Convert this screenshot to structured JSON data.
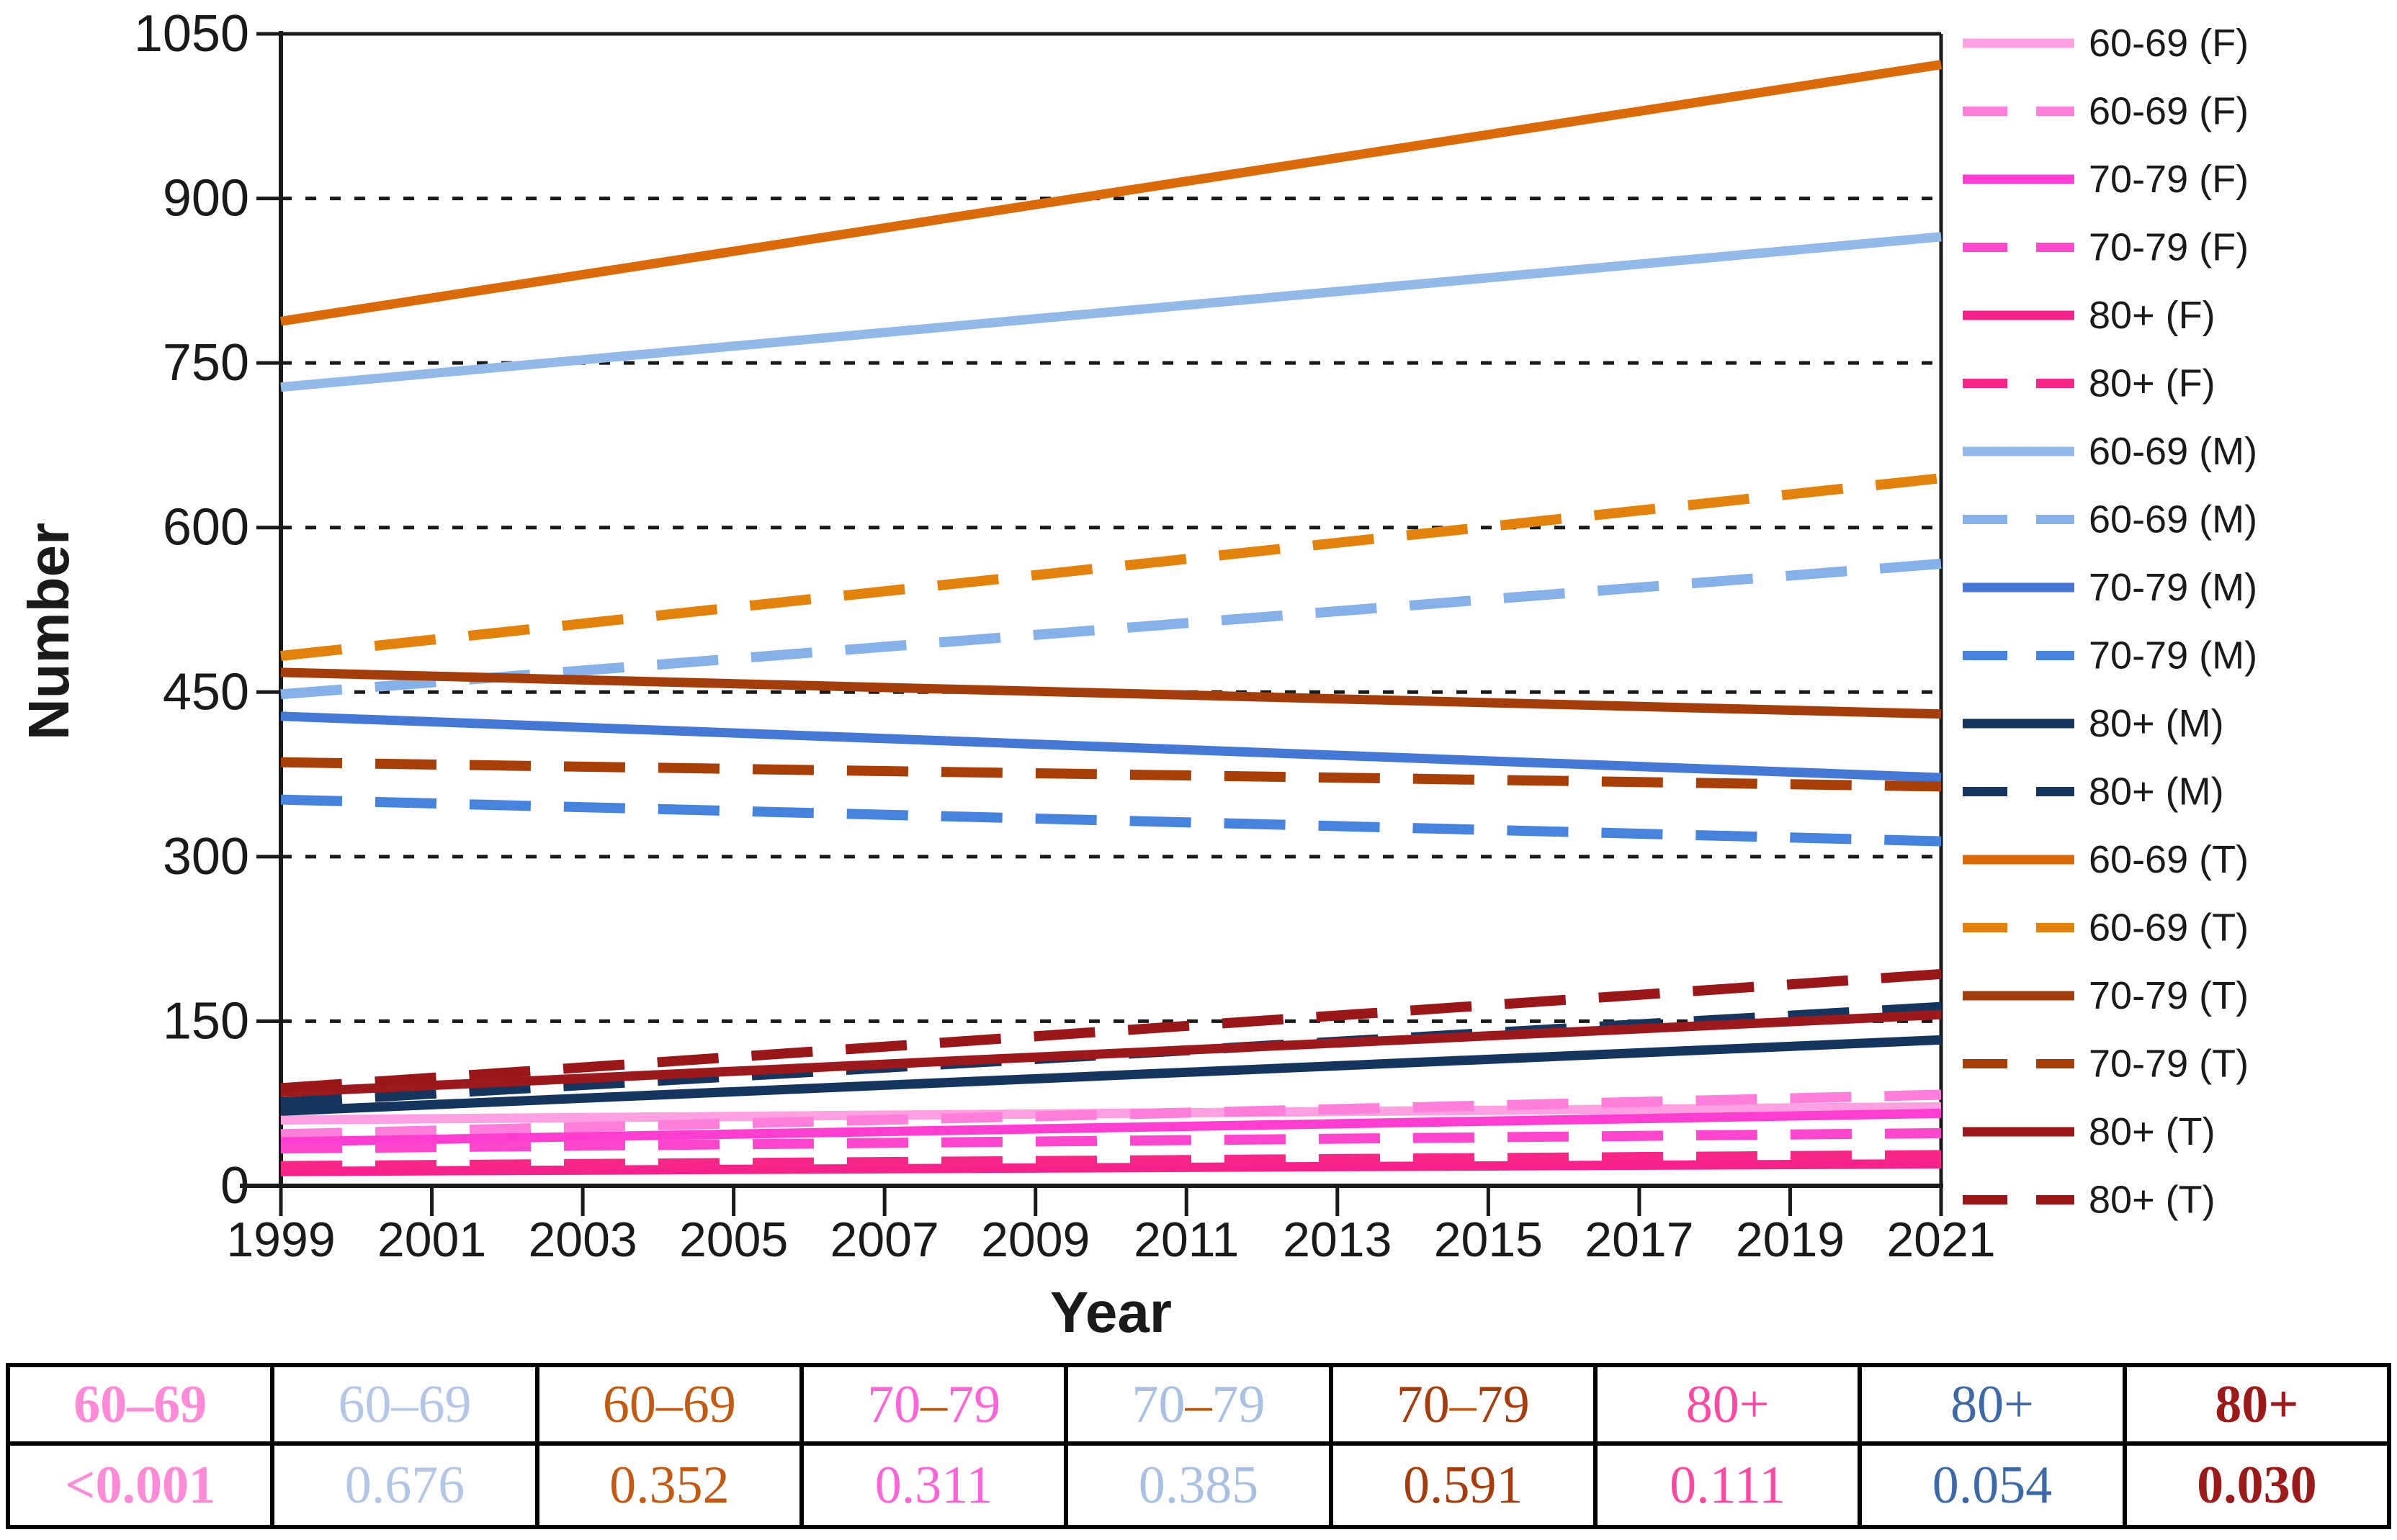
{
  "chart_data": {
    "type": "line",
    "title": "",
    "xlabel": "Year",
    "ylabel": "Number",
    "xlim": [
      1999,
      2021
    ],
    "ylim": [
      0,
      1050
    ],
    "x_tick_labels": [
      "1999",
      "2001",
      "2003",
      "2005",
      "2007",
      "2009",
      "2011",
      "2013",
      "2015",
      "2017",
      "2019",
      "2021"
    ],
    "y_ticks": [
      0,
      150,
      300,
      450,
      600,
      750,
      900,
      1050
    ],
    "grid_y_dashed": [
      150,
      300,
      450,
      600,
      750,
      900
    ],
    "legend_position": "right",
    "axis_color": "#1a1a1a",
    "series": [
      {
        "label": "60-69 (F)",
        "dash": false,
        "color": "#ffa0e2",
        "x": [
          1999,
          2021
        ],
        "values": [
          60,
          72
        ]
      },
      {
        "label": "60-69 (F)",
        "dash": true,
        "color": "#ff7edb",
        "x": [
          1999,
          2021
        ],
        "values": [
          47,
          83
        ]
      },
      {
        "label": "70-79 (F)",
        "dash": false,
        "color": "#ff3ed1",
        "x": [
          1999,
          2021
        ],
        "values": [
          40,
          66
        ]
      },
      {
        "label": "70-79 (F)",
        "dash": true,
        "color": "#ff46ce",
        "x": [
          1999,
          2021
        ],
        "values": [
          34,
          48
        ]
      },
      {
        "label": "80+ (F)",
        "dash": false,
        "color": "#f6218a",
        "x": [
          1999,
          2021
        ],
        "values": [
          13,
          20
        ]
      },
      {
        "label": "80+ (F)",
        "dash": true,
        "color": "#f62788",
        "x": [
          1999,
          2021
        ],
        "values": [
          18,
          28
        ]
      },
      {
        "label": "60-69 (M)",
        "dash": false,
        "color": "#93b9e9",
        "x": [
          1999,
          2021
        ],
        "values": [
          728,
          865
        ]
      },
      {
        "label": "60-69 (M)",
        "dash": true,
        "color": "#85b0e8",
        "x": [
          1999,
          2021
        ],
        "values": [
          448,
          567
        ]
      },
      {
        "label": "70-79 (M)",
        "dash": false,
        "color": "#4478d4",
        "x": [
          1999,
          2021
        ],
        "values": [
          428,
          372
        ]
      },
      {
        "label": "70-79 (M)",
        "dash": true,
        "color": "#4583dc",
        "x": [
          1999,
          2021
        ],
        "values": [
          352,
          314
        ]
      },
      {
        "label": "80+ (M)",
        "dash": false,
        "color": "#16355e",
        "x": [
          1999,
          2021
        ],
        "values": [
          68,
          133
        ]
      },
      {
        "label": "80+ (M)",
        "dash": true,
        "color": "#16355e",
        "x": [
          1999,
          2021
        ],
        "values": [
          76,
          163
        ]
      },
      {
        "label": "60-69 (T)",
        "dash": false,
        "color": "#db6b0a",
        "x": [
          1999,
          2021
        ],
        "values": [
          788,
          1022
        ]
      },
      {
        "label": "60-69 (T)",
        "dash": true,
        "color": "#e2820d",
        "x": [
          1999,
          2021
        ],
        "values": [
          483,
          645
        ]
      },
      {
        "label": "70-79 (T)",
        "dash": false,
        "color": "#a33d0b",
        "x": [
          1999,
          2021
        ],
        "values": [
          468,
          430
        ]
      },
      {
        "label": "70-79 (T)",
        "dash": true,
        "color": "#a83f09",
        "x": [
          1999,
          2021
        ],
        "values": [
          386,
          364
        ]
      },
      {
        "label": "80+ (T)",
        "dash": false,
        "color": "#9c1a1e",
        "x": [
          1999,
          2021
        ],
        "values": [
          85,
          156
        ]
      },
      {
        "label": "80+ (T)",
        "dash": true,
        "color": "#991719",
        "x": [
          1999,
          2021
        ],
        "values": [
          89,
          193
        ]
      }
    ]
  },
  "p_table": {
    "columns": [
      {
        "header": "60–69",
        "p_value": "<0.001",
        "color": "#ff8ad8",
        "bold": true
      },
      {
        "header": "60–69",
        "p_value": "0.676",
        "color": "#b3c6e7",
        "bold": false
      },
      {
        "header": "60–69",
        "p_value": "0.352",
        "color": "#c45a11",
        "bold": false
      },
      {
        "header": "70–79",
        "p_value": "0.311",
        "color": "#ff63da",
        "bold": false,
        "dash_color": "#b5560e"
      },
      {
        "header": "70–79",
        "p_value": "0.385",
        "color": "#a8c0e4",
        "bold": false,
        "dash_color": "#b5560e"
      },
      {
        "header": "70–79",
        "p_value": "0.591",
        "color": "#a63c0c",
        "bold": false,
        "dash_color": "#c45a11"
      },
      {
        "header": "80+",
        "p_value": "0.111",
        "color": "#ff47a4",
        "bold": false
      },
      {
        "header": "80+",
        "p_value": "0.054",
        "color": "#3e69a8",
        "bold": false
      },
      {
        "header": "80+",
        "p_value": "0.030",
        "color": "#9c1a1a",
        "bold": true
      }
    ]
  }
}
